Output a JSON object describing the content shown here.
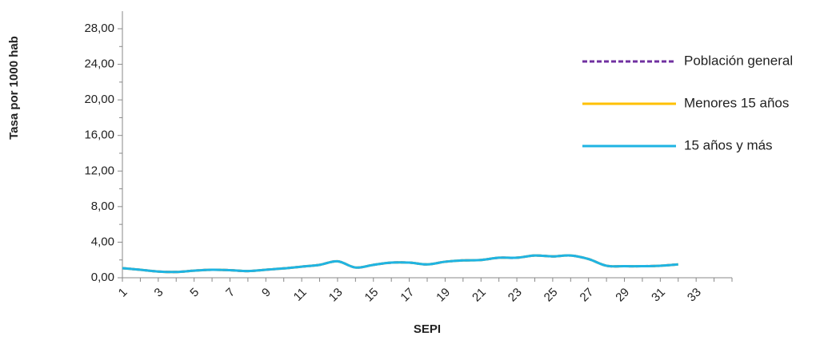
{
  "chart_data": {
    "type": "line",
    "y_label": "Tasa por 1000 hab",
    "x_label": "SEPI",
    "categories": [
      "1",
      null,
      "3",
      null,
      "5",
      null,
      "7",
      null,
      "9",
      null,
      "11",
      null,
      "13",
      null,
      "15",
      null,
      "17",
      null,
      "19",
      null,
      "21",
      null,
      "23",
      null,
      "25",
      null,
      "27",
      null,
      "29",
      null,
      "31",
      null,
      "33",
      null
    ],
    "series": [
      {
        "name": "Población general",
        "color": "#7030a0",
        "dashed": true,
        "values": [
          1.08,
          0.9,
          0.7,
          0.65,
          0.8,
          0.9,
          0.85,
          0.75,
          0.9,
          1.05,
          1.25,
          1.45,
          1.85,
          1.15,
          1.45,
          1.7,
          1.7,
          1.5,
          1.8,
          1.95,
          2.0,
          2.25,
          2.25,
          2.5,
          2.4,
          2.5,
          2.1,
          1.35,
          1.3,
          1.3,
          1.35,
          1.5,
          null,
          null
        ]
      },
      {
        "name": "Menores 15 años",
        "color": "#ffc000",
        "dashed": false,
        "values": [
          1.08,
          0.9,
          0.7,
          0.65,
          0.8,
          0.9,
          0.85,
          0.75,
          0.9,
          1.05,
          1.25,
          1.45,
          1.85,
          1.15,
          1.45,
          1.7,
          1.7,
          1.5,
          1.8,
          1.95,
          2.0,
          2.25,
          2.25,
          2.5,
          2.4,
          2.5,
          2.1,
          1.35,
          1.3,
          1.3,
          1.35,
          1.5,
          null,
          null
        ]
      },
      {
        "name": "15 años y más",
        "color": "#1fb4e3",
        "dashed": false,
        "values": [
          1.08,
          0.9,
          0.7,
          0.65,
          0.8,
          0.9,
          0.85,
          0.75,
          0.9,
          1.05,
          1.25,
          1.45,
          1.85,
          1.15,
          1.45,
          1.7,
          1.7,
          1.5,
          1.8,
          1.95,
          2.0,
          2.25,
          2.25,
          2.5,
          2.4,
          2.5,
          2.1,
          1.35,
          1.3,
          1.3,
          1.35,
          1.5,
          null,
          null
        ]
      }
    ],
    "ylim": [
      0,
      28
    ],
    "yticks": [
      {
        "value": 0,
        "label": "0,00"
      },
      {
        "value": 4,
        "label": "4,00"
      },
      {
        "value": 8,
        "label": "8,00"
      },
      {
        "value": 12,
        "label": "12,00"
      },
      {
        "value": 16,
        "label": "16,00"
      },
      {
        "value": 20,
        "label": "20,00"
      },
      {
        "value": 24,
        "label": "24,00"
      },
      {
        "value": 28,
        "label": "28,00"
      }
    ],
    "legend": "right"
  }
}
